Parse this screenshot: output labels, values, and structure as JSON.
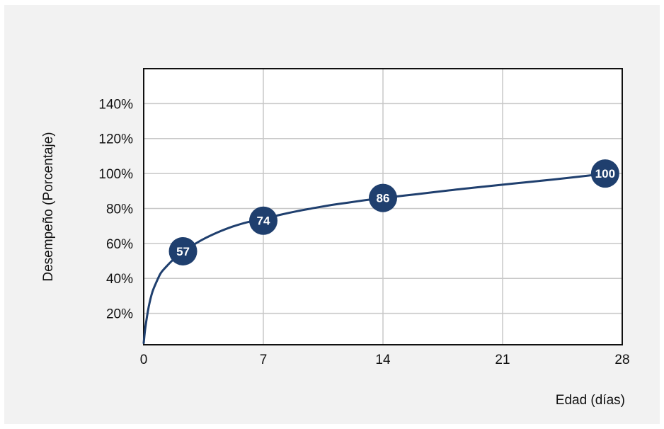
{
  "chart_data": {
    "type": "line",
    "title": "",
    "xlabel": "Edad (días)",
    "ylabel": "Desempeño (Porcentaje)",
    "xlim": [
      0,
      28
    ],
    "ylim": [
      2,
      160
    ],
    "x_ticks": [
      0,
      7,
      14,
      21,
      28
    ],
    "x_tick_labels": [
      "0",
      "7",
      "14",
      "21",
      "28"
    ],
    "y_ticks": [
      20,
      40,
      60,
      80,
      100,
      120,
      140
    ],
    "y_tick_labels": [
      "20%",
      "40%",
      "60%",
      "80%",
      "100%",
      "120%",
      "140%"
    ],
    "grid": true,
    "series": [
      {
        "color": "#1f3f6e",
        "x": [
          0,
          0.1,
          0.3,
          0.5,
          0.75,
          1,
          1.3,
          1.7,
          2.2,
          2.8,
          3.5,
          4.3,
          5.2,
          6.1,
          7,
          8,
          9,
          10,
          11,
          12,
          13,
          14,
          16,
          18,
          20,
          22,
          24,
          26,
          27
        ],
        "values": [
          3,
          12,
          24,
          32,
          38,
          43,
          46.5,
          50.5,
          54.8,
          58.5,
          62.5,
          66.2,
          69.6,
          72.2,
          74,
          76.4,
          78.5,
          80.3,
          82,
          83.4,
          84.8,
          86,
          88.2,
          90.5,
          92.6,
          94.6,
          96.6,
          98.8,
          100
        ]
      }
    ],
    "markers": [
      {
        "x": 2.3,
        "y": 55.5,
        "label": "57"
      },
      {
        "x": 7,
        "y": 73,
        "label": "74"
      },
      {
        "x": 14,
        "y": 86,
        "label": "86"
      },
      {
        "x": 27,
        "y": 100,
        "label": "100"
      }
    ],
    "colors": {
      "background": "#f2f2f2",
      "plot_background": "#ffffff",
      "grid": "#c8c8c8",
      "line": "#1f3f6e",
      "marker_fill": "#1f3f6e",
      "marker_text": "#ffffff"
    }
  }
}
